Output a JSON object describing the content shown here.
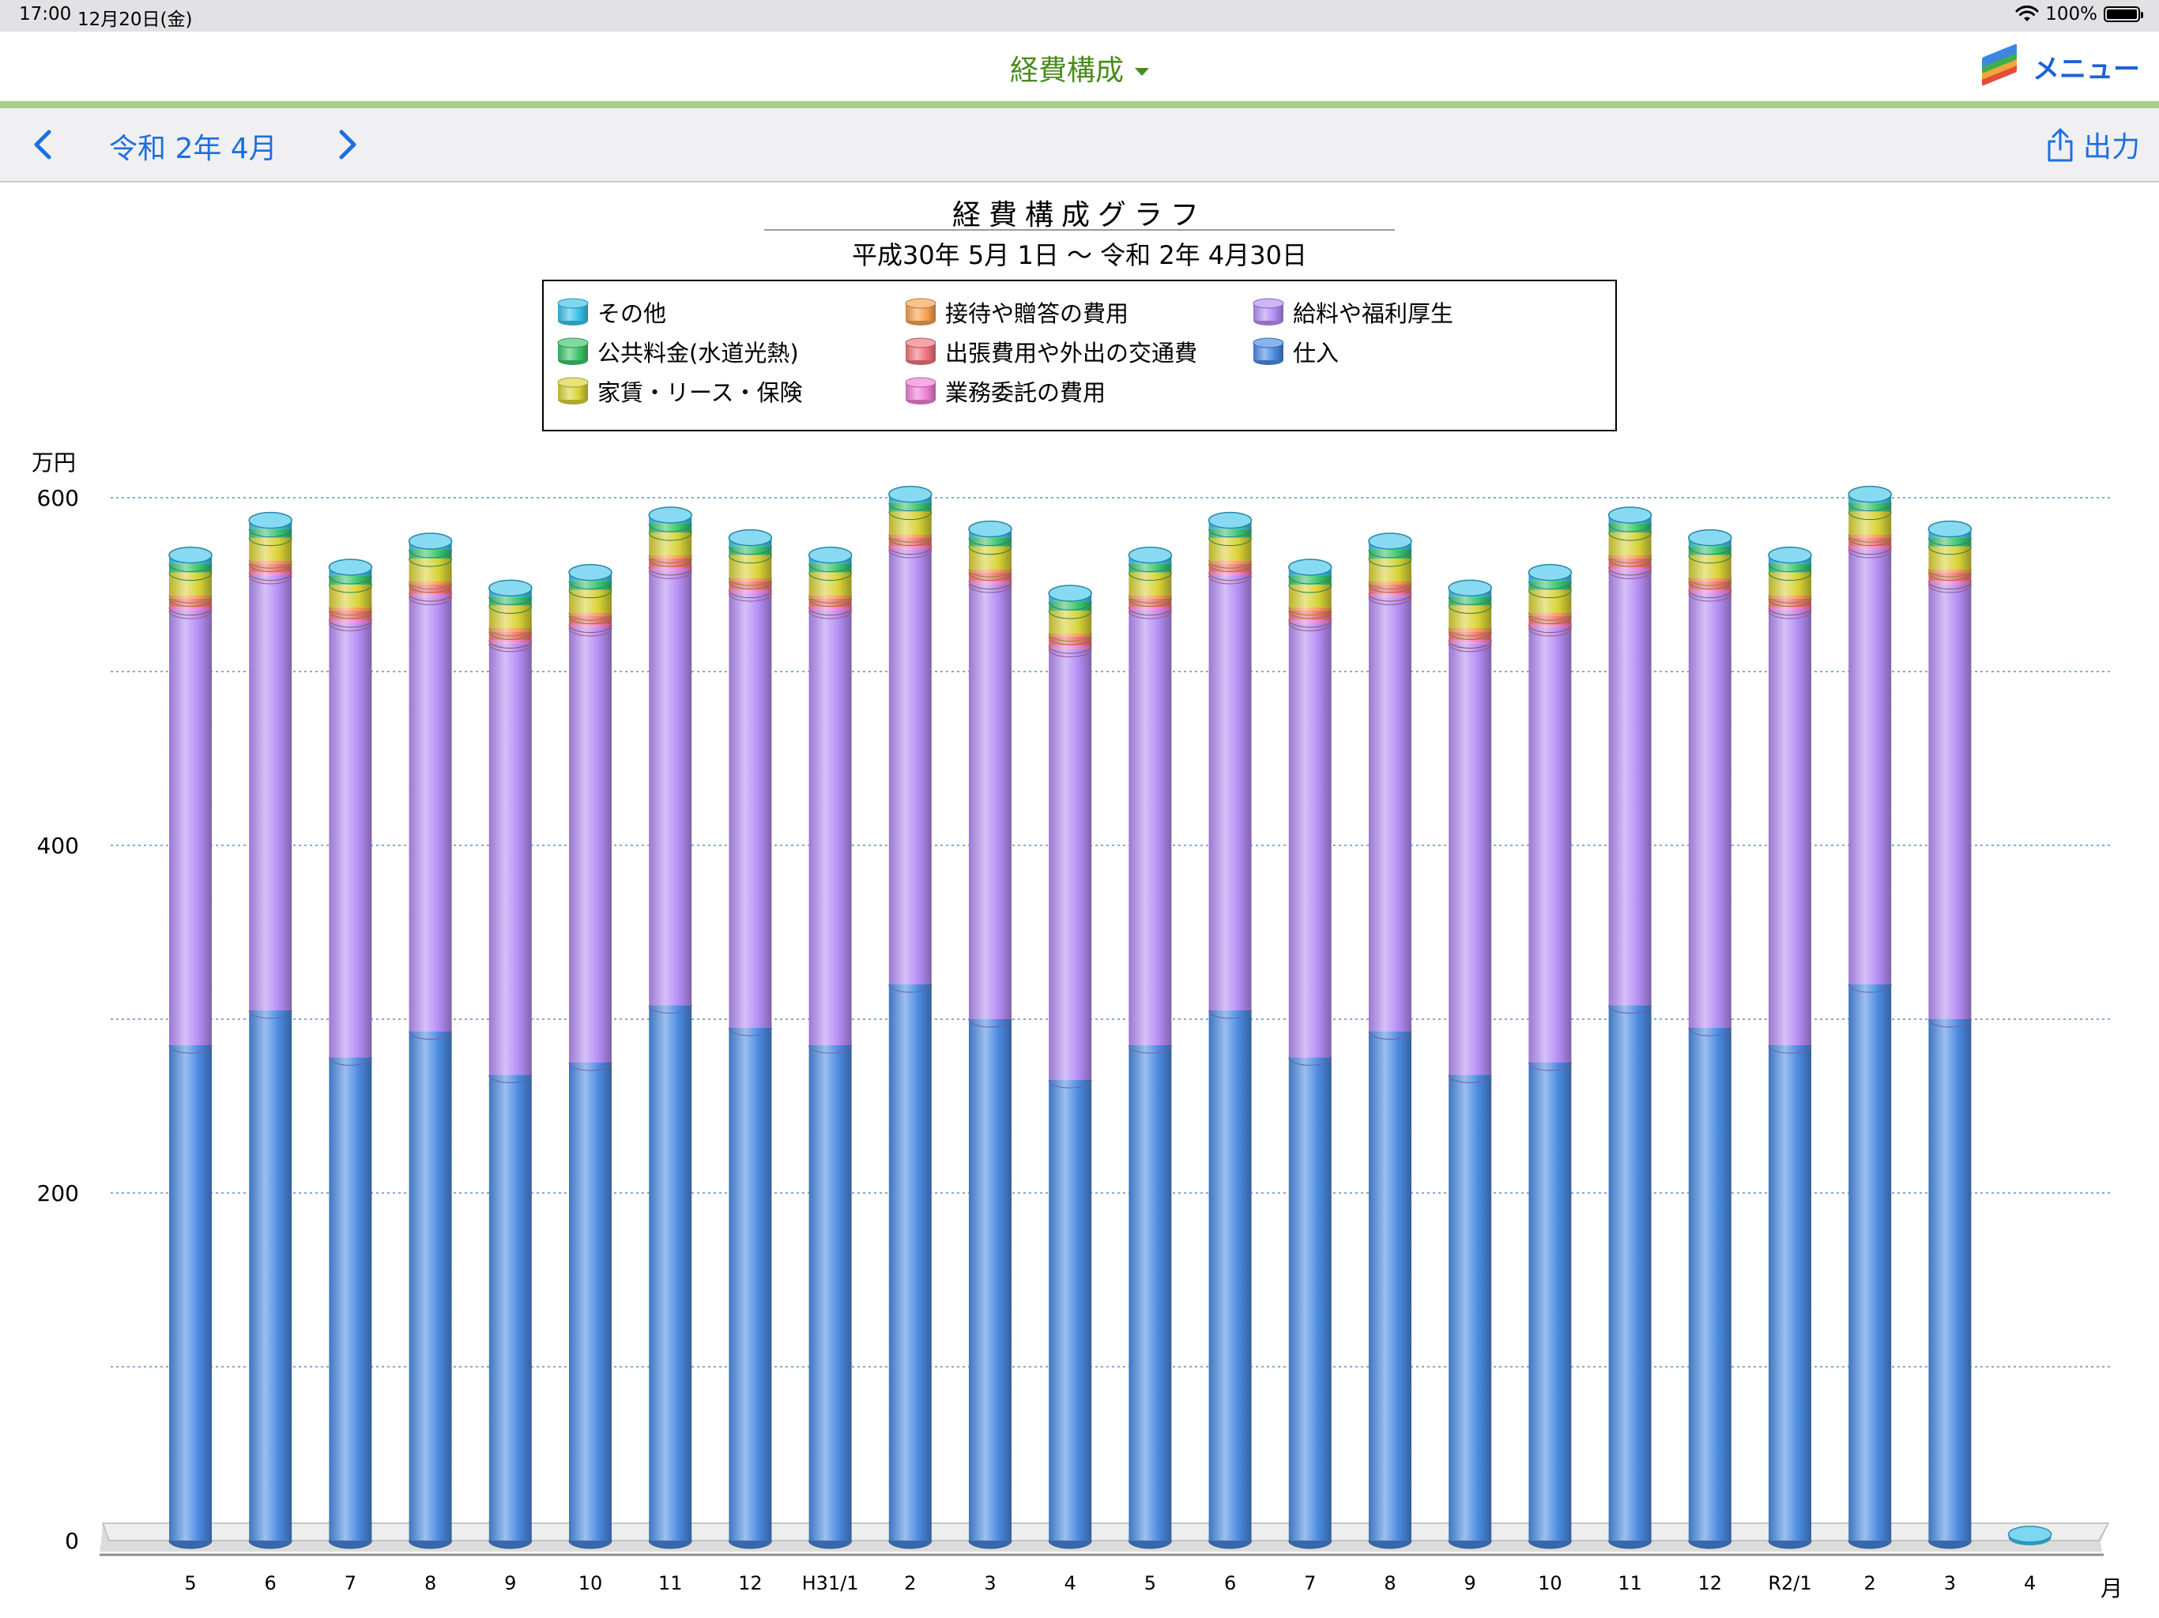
{
  "status": {
    "time": "17:00",
    "date": "12月20日(金)",
    "battery": "100%"
  },
  "nav": {
    "title": "経費構成",
    "menu_label": "メニュー"
  },
  "subbar": {
    "period": "令和 2年 4月",
    "export_label": "出力"
  },
  "colors": {
    "その他": "#38c2ea",
    "公共料金(水道光熱)": "#3cc46a",
    "家賃・リース・保険": "#d8d236",
    "接待や贈答の費用": "#f5a14f",
    "出張費用や外出の交通費": "#f0737a",
    "業務委託の費用": "#ef7fd6",
    "給料や福利厚生": "#b48df4",
    "仕入": "#4a8ae2"
  },
  "chart_data": {
    "type": "bar",
    "stacked": true,
    "title": "経費構成グラフ",
    "subtitle": "平成30年 5月 1日 〜 令和 2年 4月30日",
    "ylabel": "万円",
    "xlabel": "月",
    "ylim": [
      0,
      600
    ],
    "yticks": [
      0,
      200,
      400,
      600
    ],
    "grid": true,
    "legend_position": "top-center",
    "legend": [
      "その他",
      "公共料金(水道光熱)",
      "家賃・リース・保険",
      "接待や贈答の費用",
      "出張費用や外出の交通費",
      "業務委託の費用",
      "給料や福利厚生",
      "仕入"
    ],
    "categories": [
      "5",
      "6",
      "7",
      "8",
      "9",
      "10",
      "11",
      "12",
      "H31/1",
      "2",
      "3",
      "4",
      "5",
      "6",
      "7",
      "8",
      "9",
      "10",
      "11",
      "12",
      "R2/1",
      "2",
      "3",
      "4"
    ],
    "series": [
      {
        "name": "仕入",
        "values": [
          285,
          305,
          278,
          293,
          268,
          275,
          308,
          295,
          285,
          320,
          300,
          265,
          285,
          305,
          278,
          293,
          268,
          275,
          308,
          295,
          285,
          320,
          300,
          0
        ]
      },
      {
        "name": "給料や福利厚生",
        "values": [
          250,
          250,
          250,
          250,
          248,
          250,
          250,
          250,
          250,
          250,
          250,
          248,
          250,
          250,
          250,
          250,
          248,
          250,
          250,
          250,
          250,
          250,
          250,
          0
        ]
      },
      {
        "name": "業務委託の費用",
        "values": [
          2,
          2,
          2,
          2,
          2,
          2,
          2,
          2,
          2,
          2,
          2,
          2,
          2,
          2,
          2,
          2,
          2,
          2,
          2,
          2,
          2,
          2,
          2,
          0
        ]
      },
      {
        "name": "出張費用や外出の交通費",
        "values": [
          5,
          5,
          5,
          5,
          5,
          5,
          5,
          5,
          5,
          5,
          5,
          5,
          5,
          5,
          5,
          5,
          5,
          5,
          5,
          5,
          5,
          5,
          5,
          0
        ]
      },
      {
        "name": "接待や贈答の費用",
        "values": [
          2,
          2,
          2,
          2,
          2,
          2,
          2,
          2,
          2,
          2,
          2,
          2,
          2,
          2,
          2,
          2,
          2,
          2,
          2,
          2,
          2,
          2,
          2,
          0
        ]
      },
      {
        "name": "家賃・リース・保険",
        "values": [
          13,
          13,
          13,
          13,
          13,
          13,
          13,
          13,
          13,
          13,
          13,
          13,
          13,
          13,
          13,
          13,
          13,
          13,
          13,
          13,
          13,
          13,
          13,
          0
        ]
      },
      {
        "name": "公共料金(水道光熱)",
        "values": [
          5,
          5,
          5,
          5,
          5,
          5,
          5,
          5,
          5,
          5,
          5,
          5,
          5,
          5,
          5,
          5,
          5,
          5,
          5,
          5,
          5,
          5,
          5,
          0
        ]
      },
      {
        "name": "その他",
        "values": [
          5,
          5,
          5,
          5,
          5,
          5,
          5,
          5,
          5,
          5,
          5,
          5,
          5,
          5,
          5,
          5,
          5,
          5,
          5,
          5,
          5,
          5,
          5,
          0
        ]
      }
    ]
  }
}
